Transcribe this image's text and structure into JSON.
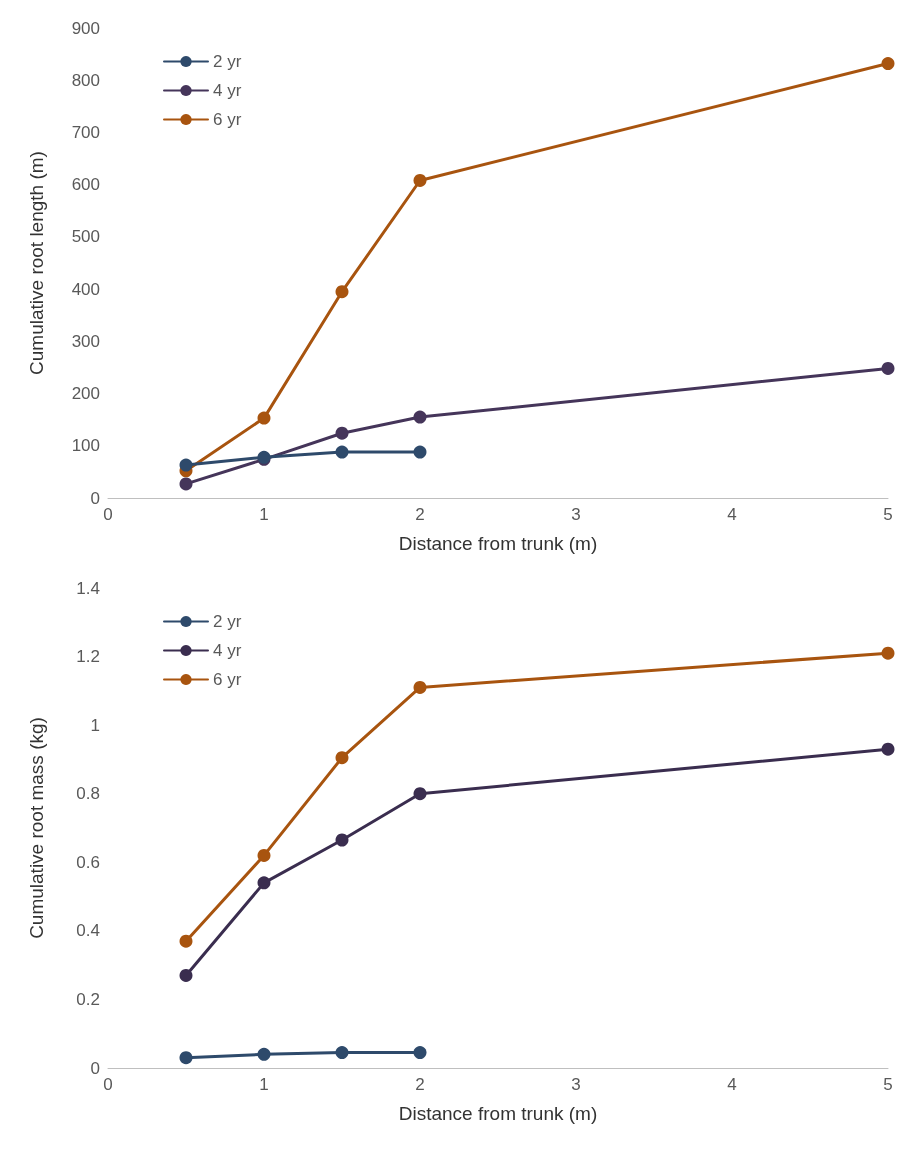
{
  "chart_data": [
    {
      "type": "line",
      "xlabel": "Distance from trunk (m)",
      "ylabel": "Cumulative root length (m)",
      "xlim": [
        0,
        5
      ],
      "xticks": [
        0,
        1,
        2,
        3,
        4,
        5
      ],
      "ylim": [
        0,
        900
      ],
      "yticks": [
        0,
        100,
        200,
        300,
        400,
        500,
        600,
        700,
        800,
        900
      ],
      "grid": false,
      "legend": "top left",
      "marker": "circle",
      "line_style": "solid",
      "series": [
        {
          "name": "2 yr",
          "color": "#2e4a6b",
          "x": [
            0.5,
            1,
            1.5,
            2
          ],
          "values": [
            63,
            78,
            88,
            88
          ]
        },
        {
          "name": "4 yr",
          "color": "#45355a",
          "x": [
            0.5,
            1,
            1.5,
            2,
            5
          ],
          "values": [
            27,
            74,
            124,
            155,
            248
          ]
        },
        {
          "name": "6 yr",
          "color": "#a8540f",
          "x": [
            0.5,
            1,
            1.5,
            2,
            5
          ],
          "values": [
            52,
            153,
            395,
            608,
            832
          ]
        }
      ]
    },
    {
      "type": "line",
      "xlabel": "Distance from trunk (m)",
      "ylabel": "Cumulative root mass (kg)",
      "xlim": [
        0,
        5
      ],
      "xticks": [
        0,
        1,
        2,
        3,
        4,
        5
      ],
      "ylim": [
        0,
        1.4
      ],
      "yticks": [
        0,
        0.2,
        0.4,
        0.6,
        0.8,
        1,
        1.2,
        1.4
      ],
      "grid": false,
      "legend": "top left",
      "marker": "circle",
      "line_style": "solid",
      "series": [
        {
          "name": "2 yr",
          "color": "#2e4a6b",
          "x": [
            0.5,
            1,
            1.5,
            2
          ],
          "values": [
            0.03,
            0.04,
            0.045,
            0.045
          ]
        },
        {
          "name": "4 yr",
          "color": "#3a2d4f",
          "x": [
            0.5,
            1,
            1.5,
            2,
            5
          ],
          "values": [
            0.27,
            0.54,
            0.665,
            0.8,
            0.93
          ]
        },
        {
          "name": "6 yr",
          "color": "#a8540f",
          "x": [
            0.5,
            1,
            1.5,
            2,
            5
          ],
          "values": [
            0.37,
            0.62,
            0.905,
            1.11,
            1.21
          ]
        }
      ]
    }
  ]
}
